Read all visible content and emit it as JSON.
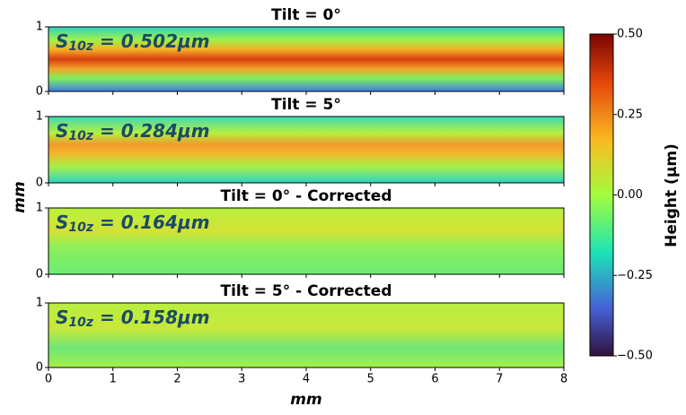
{
  "chart_data": [
    {
      "type": "heatmap",
      "title": "Tilt = 0°",
      "annotation": {
        "symbol": "S",
        "subscript": "10z",
        "text": " = 0.502μm"
      },
      "xlim": [
        0,
        8
      ],
      "xticks": [
        0,
        1,
        2,
        3,
        4,
        5,
        6,
        7,
        8
      ],
      "ylim": [
        0,
        1
      ],
      "yticks": [
        0,
        1
      ]
    },
    {
      "type": "heatmap",
      "title": "Tilt = 5°",
      "annotation": {
        "symbol": "S",
        "subscript": "10z",
        "text": " = 0.284μm"
      },
      "xlim": [
        0,
        8
      ],
      "xticks": [
        0,
        1,
        2,
        3,
        4,
        5,
        6,
        7,
        8
      ],
      "ylim": [
        0,
        1
      ],
      "yticks": [
        0,
        1
      ],
      "ylabel": "mm"
    },
    {
      "type": "heatmap",
      "title": "Tilt = 0° - Corrected",
      "annotation": {
        "symbol": "S",
        "subscript": "10z",
        "text": " = 0.164μm"
      },
      "xlim": [
        0,
        8
      ],
      "xticks": [
        0,
        1,
        2,
        3,
        4,
        5,
        6,
        7,
        8
      ],
      "ylim": [
        0,
        1
      ],
      "yticks": [
        0,
        1
      ]
    },
    {
      "type": "heatmap",
      "title": "Tilt = 5° - Corrected",
      "annotation": {
        "symbol": "S",
        "subscript": "10z",
        "text": " = 0.158μm"
      },
      "xlim": [
        0,
        8
      ],
      "xticks": [
        0,
        1,
        2,
        3,
        4,
        5,
        6,
        7,
        8
      ],
      "ylim": [
        0,
        1
      ],
      "yticks": [
        0,
        1
      ],
      "xlabel": "mm"
    },
    {
      "type": "colorbar",
      "ylabel": "Height (μm)",
      "ylim": [
        -0.5,
        0.5
      ],
      "yticks": [
        {
          "value": 0.5,
          "label": "0.50"
        },
        {
          "value": 0.25,
          "label": "0.25"
        },
        {
          "value": 0,
          "label": "0.00"
        },
        {
          "value": -0.25,
          "label": "−0.25"
        },
        {
          "value": -0.5,
          "label": "−0.50"
        }
      ]
    }
  ]
}
